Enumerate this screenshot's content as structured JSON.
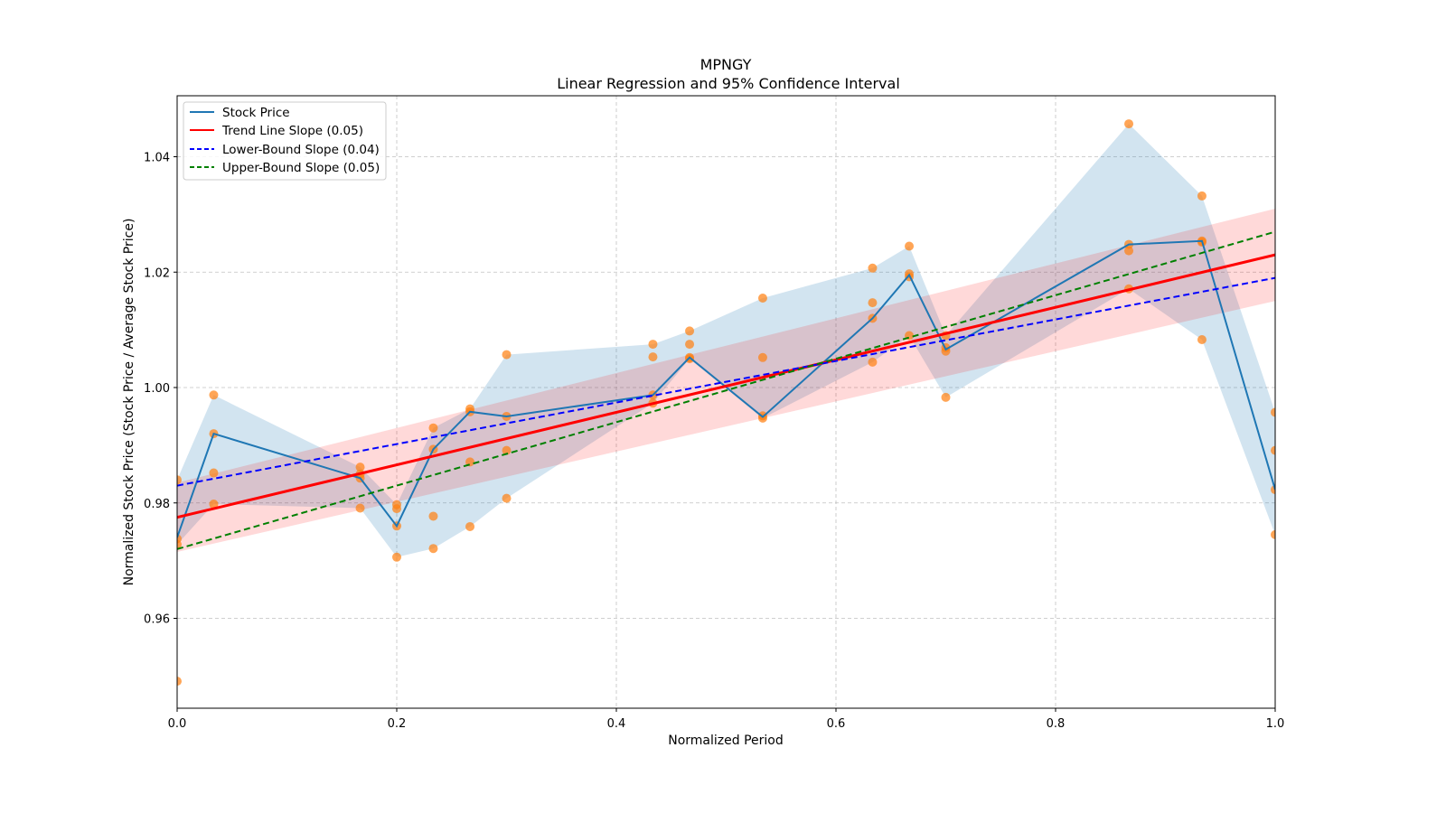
{
  "chart_data": {
    "type": "line",
    "title": "MPNGY",
    "subtitle": "Linear Regression and 95% Confidence Interval",
    "xlabel": "Normalized Period",
    "ylabel": "Normalized Stock Price (Stock Price / Average Stock Price)",
    "xlim": [
      0.0,
      1.0
    ],
    "ylim": [
      0.944,
      1.051
    ],
    "xticks": [
      0.0,
      0.2,
      0.4,
      0.6,
      0.8,
      1.0
    ],
    "xtick_labels": [
      "0.0",
      "0.2",
      "0.4",
      "0.6",
      "0.8",
      "1.0"
    ],
    "yticks": [
      0.96,
      0.98,
      1.0,
      1.02,
      1.04
    ],
    "ytick_labels": [
      "0.96",
      "0.98",
      "1.00",
      "1.02",
      "1.04"
    ],
    "grid": true,
    "legend_position": "top-left",
    "legend": [
      {
        "label": "Stock Price",
        "color": "#1f77b4",
        "style": "solid"
      },
      {
        "label": "Trend Line Slope (0.05)",
        "color": "#ff0000",
        "style": "solid"
      },
      {
        "label": "Lower-Bound Slope (0.04)",
        "color": "#0000ff",
        "style": "dashed"
      },
      {
        "label": "Upper-Bound Slope (0.05)",
        "color": "#008000",
        "style": "dashed"
      }
    ],
    "stock_price": {
      "name": "Stock Price",
      "color": "#1f77b4",
      "x": [
        0.0,
        0.0333,
        0.1667,
        0.2,
        0.2333,
        0.2667,
        0.3,
        0.4333,
        0.4667,
        0.5333,
        0.6333,
        0.6667,
        0.7,
        0.8667,
        0.9333,
        1.0
      ],
      "y": [
        0.974,
        0.992,
        0.9843,
        0.976,
        0.9893,
        0.9958,
        0.995,
        0.9987,
        1.0052,
        0.9949,
        1.012,
        1.0195,
        1.0066,
        1.0248,
        1.0254,
        0.9823
      ],
      "band_low": [
        0.9728,
        0.9798,
        0.9791,
        0.9706,
        0.9721,
        0.9759,
        0.9808,
        0.9973,
        1.005,
        0.9947,
        1.0044,
        1.009,
        0.9983,
        1.0171,
        1.0083,
        0.9745
      ],
      "band_high": [
        0.984,
        0.9987,
        0.9862,
        0.9797,
        0.993,
        0.9963,
        1.0057,
        1.0075,
        1.0098,
        1.0155,
        1.0207,
        1.0245,
        1.009,
        1.0457,
        1.0332,
        0.9957
      ],
      "band_color": "#1f77b4"
    },
    "scatter": {
      "name": "Observations",
      "color": "#ff7f0e",
      "points": [
        [
          0.0,
          0.984
        ],
        [
          0.0,
          0.9738
        ],
        [
          0.0,
          0.9728
        ],
        [
          0.0,
          0.9491
        ],
        [
          0.0333,
          0.9987
        ],
        [
          0.0333,
          0.992
        ],
        [
          0.0333,
          0.9852
        ],
        [
          0.0333,
          0.9798
        ],
        [
          0.1667,
          0.9862
        ],
        [
          0.1667,
          0.985
        ],
        [
          0.1667,
          0.9843
        ],
        [
          0.1667,
          0.9791
        ],
        [
          0.2,
          0.9797
        ],
        [
          0.2,
          0.979
        ],
        [
          0.2,
          0.976
        ],
        [
          0.2,
          0.9706
        ],
        [
          0.2333,
          0.993
        ],
        [
          0.2333,
          0.9893
        ],
        [
          0.2333,
          0.9777
        ],
        [
          0.2333,
          0.9721
        ],
        [
          0.2667,
          0.9963
        ],
        [
          0.2667,
          0.9958
        ],
        [
          0.2667,
          0.9871
        ],
        [
          0.2667,
          0.9759
        ],
        [
          0.3,
          1.0057
        ],
        [
          0.3,
          0.995
        ],
        [
          0.3,
          0.9891
        ],
        [
          0.3,
          0.9808
        ],
        [
          0.4333,
          1.0075
        ],
        [
          0.4333,
          1.0053
        ],
        [
          0.4333,
          0.9987
        ],
        [
          0.4333,
          0.9973
        ],
        [
          0.4667,
          1.0098
        ],
        [
          0.4667,
          1.0075
        ],
        [
          0.4667,
          1.0052
        ],
        [
          0.4667,
          1.005
        ],
        [
          0.5333,
          1.0155
        ],
        [
          0.5333,
          1.0052
        ],
        [
          0.5333,
          0.9951
        ],
        [
          0.5333,
          0.9947
        ],
        [
          0.6333,
          1.0207
        ],
        [
          0.6333,
          1.0147
        ],
        [
          0.6333,
          1.012
        ],
        [
          0.6333,
          1.0044
        ],
        [
          0.6667,
          1.0245
        ],
        [
          0.6667,
          1.0197
        ],
        [
          0.6667,
          1.0192
        ],
        [
          0.6667,
          1.009
        ],
        [
          0.7,
          1.009
        ],
        [
          0.7,
          1.0069
        ],
        [
          0.7,
          1.0063
        ],
        [
          0.7,
          0.9983
        ],
        [
          0.8667,
          1.0457
        ],
        [
          0.8667,
          1.0248
        ],
        [
          0.8667,
          1.0237
        ],
        [
          0.8667,
          1.0171
        ],
        [
          0.9333,
          1.0332
        ],
        [
          0.9333,
          1.0254
        ],
        [
          0.9333,
          1.0252
        ],
        [
          0.9333,
          1.0083
        ],
        [
          1.0,
          0.9957
        ],
        [
          1.0,
          0.9891
        ],
        [
          1.0,
          0.9823
        ],
        [
          1.0,
          0.9745
        ]
      ]
    },
    "trend_line": {
      "name": "Trend Line Slope (0.05)",
      "slope": 0.05,
      "x": [
        0.0,
        1.0
      ],
      "y": [
        0.9775,
        1.023
      ],
      "color": "#ff0000"
    },
    "trend_ci": {
      "x": [
        0.0,
        1.0
      ],
      "low": [
        0.9715,
        1.015
      ],
      "high": [
        0.9835,
        1.031
      ],
      "color": "#ff0000"
    },
    "lower_bound": {
      "name": "Lower-Bound Slope (0.04)",
      "slope": 0.04,
      "x": [
        0.0,
        1.0
      ],
      "y": [
        0.983,
        1.019
      ],
      "color": "#0000ff"
    },
    "upper_bound": {
      "name": "Upper-Bound Slope (0.05)",
      "slope": 0.05,
      "x": [
        0.0,
        1.0
      ],
      "y": [
        0.972,
        1.027
      ],
      "color": "#008000"
    }
  }
}
